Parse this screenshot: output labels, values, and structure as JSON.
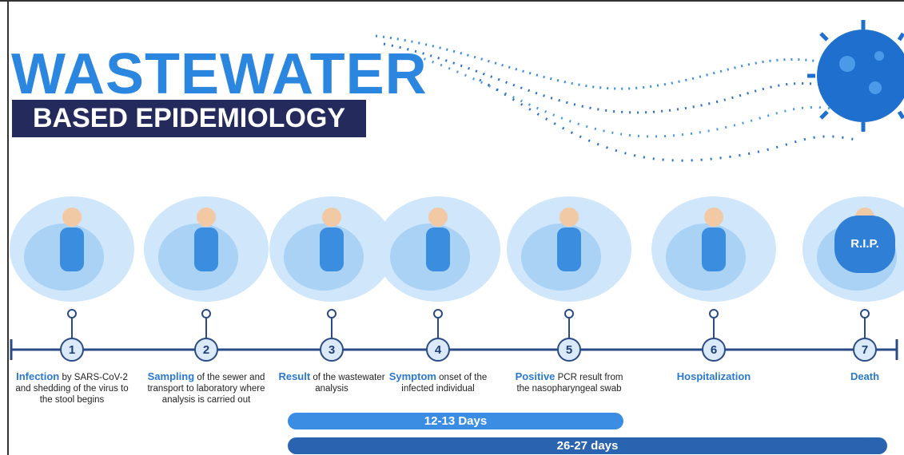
{
  "header": {
    "title": "WASTEWATER",
    "subtitle": "BASED EPIDEMIOLOGY"
  },
  "steps": [
    {
      "number": "1",
      "label": "Infection",
      "text": "by SARS-CoV-2 and shedding of the virus to the stool begins"
    },
    {
      "number": "2",
      "label": "Sampling",
      "text": "of the sewer and transport to laboratory where analysis is carried out"
    },
    {
      "number": "3",
      "label": "Result",
      "text": "of the wastewater analysis"
    },
    {
      "number": "4",
      "label": "Symptom",
      "text": "onset of the infected individual"
    },
    {
      "number": "5",
      "label": "Positive",
      "text": "PCR result from the nasopharyngeal swab"
    },
    {
      "number": "6",
      "label": "Hospitalization"
    },
    {
      "number": "7",
      "label": "Death",
      "sign": "R.I.P."
    }
  ],
  "durations": [
    {
      "label": "12-13 Days",
      "from_step": 3,
      "to_step": 5
    },
    {
      "label": "26-27 days",
      "from_step": 3,
      "to_step": 7
    }
  ]
}
